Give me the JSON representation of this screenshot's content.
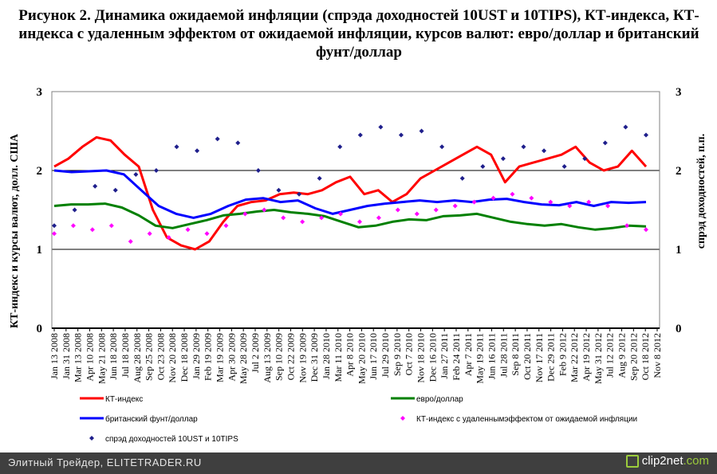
{
  "title": "Рисунок 2. Динамика ожидаемой инфляции (спрэда доходностей 10UST и 10TIPS), КТ-индекса, КТ-индекса с удаленным эффектом от ожидаемой инфляции, курсов валют: евро/доллар и британский фунт/доллар",
  "footer": {
    "site_text": "Элитный Трейдер, ELITETRADER.RU",
    "logo_text": "clip2net",
    "logo_suffix": ".com"
  },
  "chart_data": {
    "type": "line",
    "ylabel_left": "КТ-индекс и курсы валют, долл. США",
    "ylabel_right": "спрэд доходностей, п.п.",
    "ylim_left": [
      0,
      3
    ],
    "ylim_right": [
      0,
      3
    ],
    "yticks_left": [
      "0",
      "1",
      "2",
      "3"
    ],
    "yticks_right": [
      "0",
      "1",
      "2",
      "3"
    ],
    "grid": true,
    "legend_position": "bottom",
    "x_tick_labels": [
      "Jan 13 2008",
      "Jan 31 2008",
      "Mar 13 2008",
      "Apr 10 2008",
      "May 21 2008",
      "Jun 18 2008",
      "Jul 18 2008",
      "Aug 28 2008",
      "Sep 25 2008",
      "Oct 23 2008",
      "Nov 20 2008",
      "Dec 18 2008",
      "Jan 29 2009",
      "Feb 19 2009",
      "Mar 19 2009",
      "Apr 30 2009",
      "May 28 2009",
      "Jul 2 2009",
      "Aug 13 2009",
      "Sep 10 2009",
      "Oct 22 2009",
      "Nov 19 2009",
      "Dec 31 2009",
      "Jan 28 2010",
      "Mar 11 2010",
      "Apr 8 2010",
      "May 20 2010",
      "Jun 17 2010",
      "Jul 29 2010",
      "Sep 9 2010",
      "Oct 7 2010",
      "Nov 18 2010",
      "Dec 16 2010",
      "Jan 27 2011",
      "Feb 24 2011",
      "Apr 7 2011",
      "May 19 2011",
      "Jun 16 2011",
      "Jul 28 2011",
      "Sep 8 2011",
      "Oct 20 2011",
      "Nov 17 2011",
      "Dec 29 2011",
      "Feb 9 2012",
      "Mar 22 2012",
      "Apr 19 2012",
      "May 31 2012",
      "Jul 12 2012",
      "Aug 9 2012",
      "Sep 20 2012",
      "Oct 18 2012",
      "Nov 8 2012"
    ],
    "series": [
      {
        "name": "КТ-индекс",
        "axis": "left",
        "style": "line",
        "color": "#ff0000",
        "values": [
          2.05,
          2.15,
          2.3,
          2.42,
          2.38,
          2.2,
          2.05,
          1.5,
          1.15,
          1.05,
          1.0,
          1.1,
          1.35,
          1.55,
          1.6,
          1.62,
          1.7,
          1.72,
          1.7,
          1.75,
          1.85,
          1.92,
          1.7,
          1.75,
          1.6,
          1.7,
          1.9,
          2.0,
          2.1,
          2.2,
          2.3,
          2.2,
          1.85,
          2.05,
          2.1,
          2.15,
          2.2,
          2.3,
          2.1,
          2.0,
          2.05,
          2.25,
          2.05
        ]
      },
      {
        "name": "евро/доллар",
        "axis": "left",
        "style": "line",
        "color": "#008000",
        "values": [
          1.55,
          1.57,
          1.57,
          1.58,
          1.53,
          1.43,
          1.3,
          1.27,
          1.32,
          1.37,
          1.43,
          1.45,
          1.48,
          1.5,
          1.47,
          1.45,
          1.42,
          1.35,
          1.28,
          1.3,
          1.35,
          1.38,
          1.37,
          1.42,
          1.43,
          1.45,
          1.4,
          1.35,
          1.32,
          1.3,
          1.32,
          1.28,
          1.25,
          1.27,
          1.3,
          1.29
        ]
      },
      {
        "name": "британский фунт/доллар",
        "axis": "left",
        "style": "line",
        "color": "#0000ff",
        "values": [
          2.0,
          1.98,
          1.99,
          2.0,
          1.95,
          1.75,
          1.55,
          1.45,
          1.4,
          1.45,
          1.55,
          1.63,
          1.65,
          1.6,
          1.62,
          1.52,
          1.45,
          1.5,
          1.55,
          1.58,
          1.6,
          1.62,
          1.6,
          1.62,
          1.6,
          1.63,
          1.64,
          1.6,
          1.57,
          1.56,
          1.6,
          1.55,
          1.6,
          1.59,
          1.6
        ]
      },
      {
        "name": "КТ-индекс с удаленнымэффектом от ожидаемой инфляции",
        "axis": "left",
        "style": "points",
        "color": "#ff00ff",
        "values": [
          1.2,
          1.3,
          1.25,
          1.3,
          1.1,
          1.2,
          1.15,
          1.25,
          1.2,
          1.3,
          1.45,
          1.5,
          1.4,
          1.35,
          1.4,
          1.45,
          1.35,
          1.4,
          1.5,
          1.45,
          1.5,
          1.55,
          1.6,
          1.65,
          1.7,
          1.65,
          1.6,
          1.55,
          1.6,
          1.55,
          1.3,
          1.25
        ]
      },
      {
        "name": "спрэд доходностей 10UST и 10TIPS",
        "axis": "right",
        "style": "points",
        "color": "#1f1f8c",
        "values": [
          1.3,
          1.5,
          1.8,
          1.75,
          1.95,
          2.0,
          2.3,
          2.25,
          2.4,
          2.35,
          2.0,
          1.75,
          1.7,
          1.9,
          2.3,
          2.45,
          2.55,
          2.45,
          2.5,
          2.3,
          1.9,
          2.05,
          2.15,
          2.3,
          2.25,
          2.05,
          2.15,
          2.35,
          2.55,
          2.45
        ]
      }
    ]
  }
}
